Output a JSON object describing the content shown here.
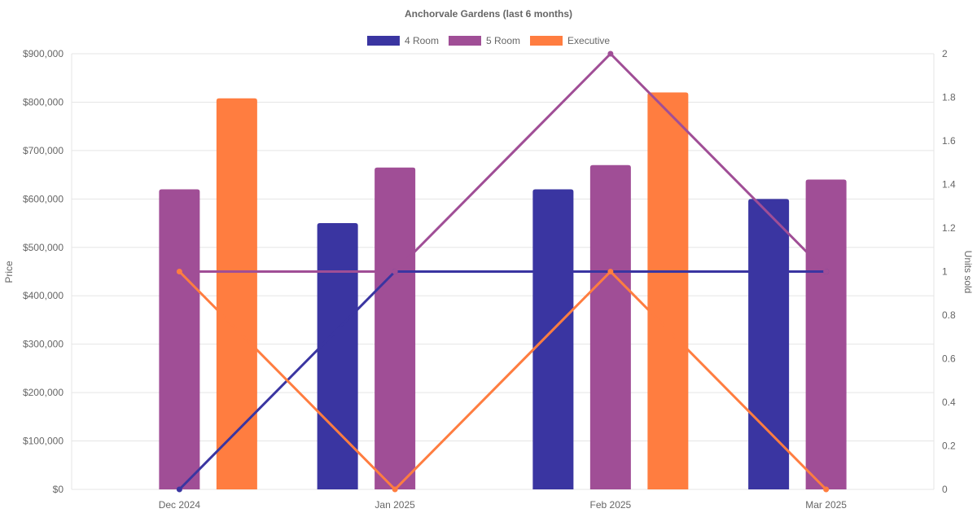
{
  "chart_data": {
    "type": "bar",
    "title": "Anchorvale Gardens (last 6 months)",
    "categories": [
      "Dec 2024",
      "Jan 2025",
      "Feb 2025",
      "Mar 2025"
    ],
    "left_axis": {
      "label": "Price",
      "min": 0,
      "max": 900000,
      "ticks": [
        "$0",
        "$100,000",
        "$200,000",
        "$300,000",
        "$400,000",
        "$500,000",
        "$600,000",
        "$700,000",
        "$800,000",
        "$900,000"
      ]
    },
    "right_axis": {
      "label": "Units sold",
      "min": 0,
      "max": 2,
      "ticks": [
        "0",
        "0.2",
        "0.4",
        "0.6",
        "0.8",
        "1",
        "1.2",
        "1.4",
        "1.6",
        "1.8",
        "2"
      ]
    },
    "legend_position": "top",
    "grid": true,
    "series": [
      {
        "name": "4 Room",
        "color": "#3a35a1",
        "prices": [
          null,
          550000,
          620000,
          600000
        ],
        "units": [
          0,
          1,
          1,
          1
        ]
      },
      {
        "name": "5 Room",
        "color": "#a04e96",
        "prices": [
          620000,
          665000,
          670000,
          640000
        ],
        "units": [
          1,
          1,
          2,
          1
        ]
      },
      {
        "name": "Executive",
        "color": "#ff7d40",
        "prices": [
          808000,
          null,
          820000,
          null
        ],
        "units": [
          1,
          0,
          1,
          0
        ]
      }
    ]
  }
}
